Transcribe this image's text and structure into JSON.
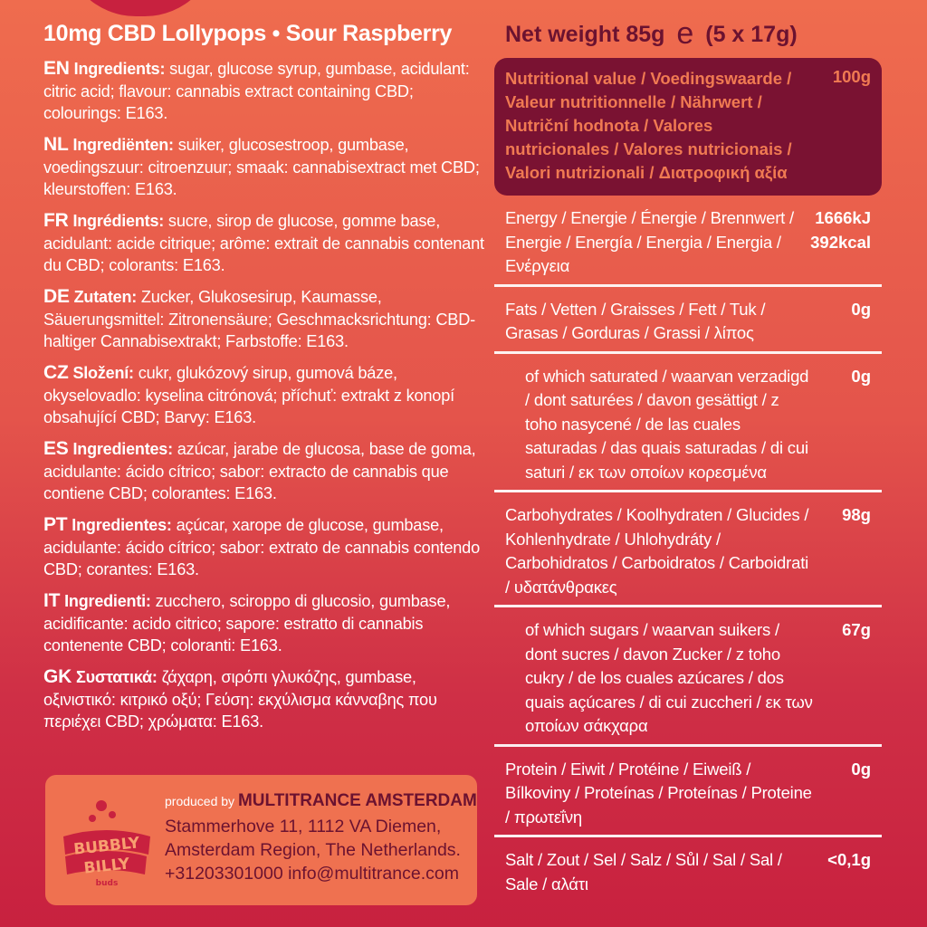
{
  "product_title": "10mg CBD Lollypops • Sour Raspberry",
  "net_weight": {
    "label": "Net weight 85g",
    "e_mark": "e",
    "portion": "(5 x 17g)"
  },
  "ingredients": [
    {
      "code": "EN",
      "label": "Ingredients:",
      "text": "sugar, glucose syrup, gumbase, acidulant: citric acid; flavour: cannabis extract containing CBD; colourings: E163."
    },
    {
      "code": "NL",
      "label": "Ingrediënten:",
      "text": "suiker, glucosestroop, gumbase, voedingszuur: citroenzuur; smaak: cannabisextract met CBD; kleurstoffen: E163."
    },
    {
      "code": "FR",
      "label": "Ingrédients:",
      "text": "sucre, sirop de glucose, gomme base, acidulant: acide citrique; arôme: extrait de cannabis contenant du CBD; colorants: E163."
    },
    {
      "code": "DE",
      "label": "Zutaten:",
      "text": "Zucker, Glukosesirup, Kaumasse, Säuerungsmittel: Zitronensäure; Geschmacksrichtung: CBD-haltiger Cannabisextrakt; Farbstoffe: E163."
    },
    {
      "code": "CZ",
      "label": "Složení:",
      "text": "cukr, glukózový sirup, gumová báze, okyselovadlo: kyselina citrónová; příchuť: extrakt z konopí obsahující CBD; Barvy: E163."
    },
    {
      "code": "ES",
      "label": "Ingredientes:",
      "text": "azúcar, jarabe de glucosa, base de goma, acidulante: ácido cítrico; sabor: extracto de cannabis que contiene CBD; colorantes: E163."
    },
    {
      "code": "PT",
      "label": "Ingredientes:",
      "text": "açúcar, xarope de glucose, gumbase, acidulante: ácido cítrico; sabor: extrato de cannabis contendo CBD; corantes: E163."
    },
    {
      "code": "IT",
      "label": "Ingredienti:",
      "text": "zucchero, sciroppo di glucosio, gumbase, acidificante: acido citrico; sapore: estratto di cannabis contenente CBD; coloranti: E163."
    },
    {
      "code": "GK",
      "label": "Συστατικά:",
      "text": "ζάχαρη, σιρόπι γλυκόζης, gumbase, οξινιστικό: κιτρικό οξύ; Γεύση: εκχύλισμα κάνναβης που περιέχει CBD; χρώματα: E163."
    }
  ],
  "producer": {
    "produced_by": "produced by",
    "company": "MULTITRANCE AMSTERDAM",
    "address_lines": [
      "Stammerhove 11, 1112 VA Diemen,",
      "Amsterdam Region, The Netherlands.",
      "+31203301000 info@multitrance.com"
    ],
    "logo_text": [
      "BUBBLY",
      "BILLY",
      "buds"
    ]
  },
  "nutrition": {
    "header": "Nutritional value / Voedingswaarde / Valeur nutritionnelle / Nährwert / Nutriční hodnota / Valores nutricionales / Valores nutricionais / Valori nutrizionali / Διατροφική αξία",
    "per": "100g",
    "rows": [
      {
        "label": "Energy / Energie / Énergie / Brennwert / Energie / Energía / Energia / Energia / Ενέργεια",
        "value": "1666kJ\n392kcal",
        "indent": false
      },
      {
        "label": "Fats / Vetten / Graisses / Fett / Tuk / Grasas / Gorduras / Grassi / λίπος",
        "value": "0g",
        "indent": false
      },
      {
        "label": "of which saturated / waarvan verzadigd / dont saturées / davon gesättigt / z toho nasycené / de las cuales saturadas / das quais saturadas / di cui saturi / εκ των οποίων κορεσμένα",
        "value": "0g",
        "indent": true
      },
      {
        "label": "Carbohydrates / Koolhydraten / Glucides / Kohlenhydrate / Uhlohydráty / Carbohidratos / Carboidratos / Carboidrati / υδατάνθρακες",
        "value": "98g",
        "indent": false
      },
      {
        "label": "of which sugars / waarvan suikers / dont sucres / davon Zucker / z toho cukry / de los cuales azúcares / dos quais açúcares / di cui zuccheri / εκ των οποίων σάκχαρα",
        "value": "67g",
        "indent": true
      },
      {
        "label": "Protein / Eiwit / Protéine / Eiweiß / Bílkoviny / Proteínas / Proteínas / Proteine / πρωτεΐνη",
        "value": "0g",
        "indent": false
      },
      {
        "label": "Salt / Zout / Sel / Salz / Sůl / Sal / Sal / Sale / αλάτι",
        "value": "<0,1g",
        "indent": false
      }
    ]
  },
  "colors": {
    "accent_dark": "#6b1230",
    "header_bg": "#7a1232",
    "header_text": "#f07a52",
    "producer_bg": "#ef7150"
  }
}
